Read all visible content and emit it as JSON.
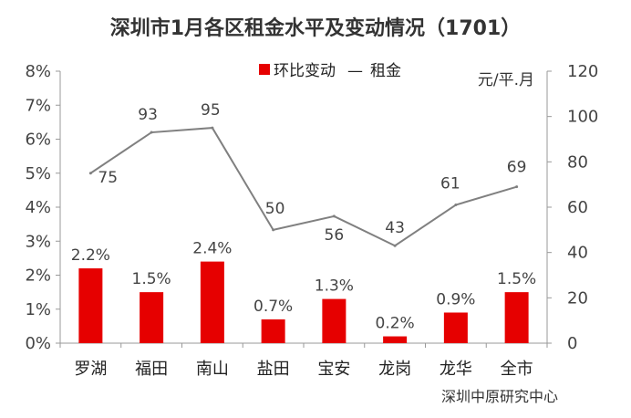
{
  "chart_data": {
    "type": "bar",
    "title": "深圳市1月各区租金水平及变动情况（1701）",
    "categories": [
      "罗湖",
      "福田",
      "南山",
      "盐田",
      "宝安",
      "龙岗",
      "龙华",
      "全市"
    ],
    "series": [
      {
        "name": "环比变动",
        "type": "bar",
        "axis": "left",
        "values": [
          2.2,
          1.5,
          2.4,
          0.7,
          1.3,
          0.2,
          0.9,
          1.5
        ],
        "labels": [
          "2.2%",
          "1.5%",
          "2.4%",
          "0.7%",
          "1.3%",
          "0.2%",
          "0.9%",
          "1.5%"
        ],
        "color": "#e60000"
      },
      {
        "name": "租金",
        "type": "line",
        "axis": "right",
        "values": [
          75,
          93,
          95,
          50,
          56,
          43,
          61,
          69
        ],
        "labels": [
          "75",
          "93",
          "95",
          "50",
          "56",
          "43",
          "61",
          "69"
        ],
        "color": "#808080"
      }
    ],
    "y_left": {
      "range": [
        0,
        8
      ],
      "ticks": [
        "0%",
        "1%",
        "2%",
        "3%",
        "4%",
        "5%",
        "6%",
        "7%",
        "8%"
      ]
    },
    "y_right": {
      "range": [
        0,
        120
      ],
      "ticks": [
        "0",
        "20",
        "40",
        "60",
        "80",
        "100",
        "120"
      ],
      "unit": "元/平.月"
    },
    "legend": {
      "placement": "top",
      "items": [
        "环比变动",
        "租金"
      ],
      "line_glyph": "—"
    },
    "grid": false,
    "source": "深圳中原研究中心"
  }
}
